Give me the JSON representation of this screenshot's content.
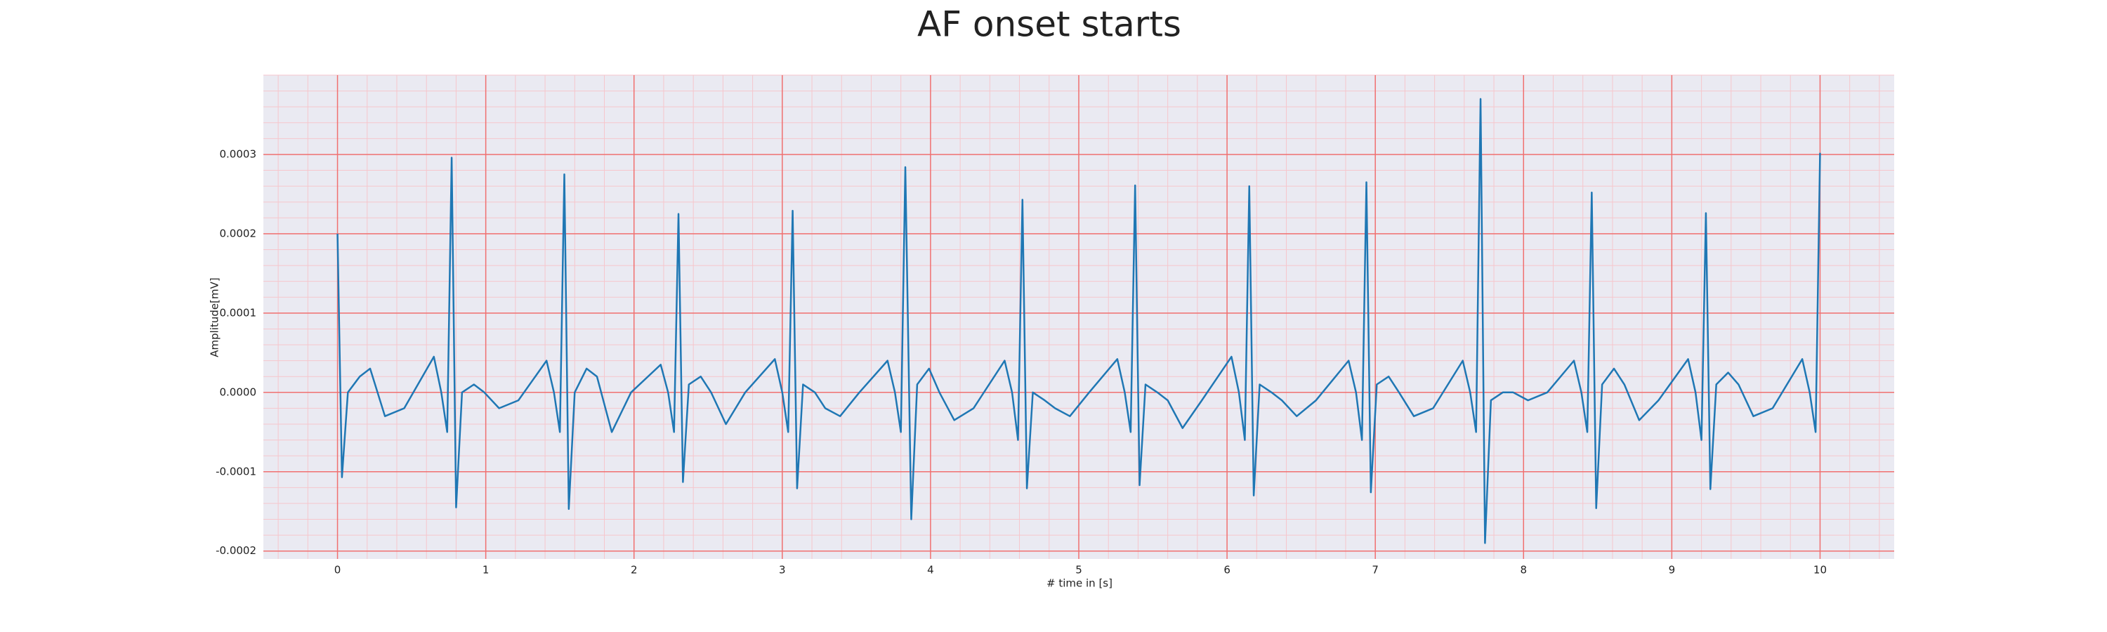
{
  "chart_data": {
    "type": "line",
    "title": "AF onset starts",
    "xlabel": "# time in [s]",
    "ylabel": "Amplitude[mV]",
    "color": "#1f77b4",
    "background": "#eaeaf2",
    "grid": true,
    "grid_color": "#f07070",
    "minor_grid": {
      "x": 0.2,
      "y": 2e-05
    },
    "minor_grid_color": "#f6c6cc",
    "xlim": [
      -0.5,
      10.5
    ],
    "xticks": [
      0,
      1,
      2,
      3,
      4,
      5,
      6,
      7,
      8,
      9,
      10
    ],
    "ylim": [
      -0.00021,
      0.0004
    ],
    "yticks": [
      -0.0002,
      -0.0001,
      {
        "value": 0,
        "label": "0.0000"
      },
      0.0001,
      0.0002,
      0.0003
    ],
    "x": [
      0,
      0.03,
      0.07,
      0.15,
      0.22,
      0.32,
      0.45,
      0.65,
      0.7,
      0.74,
      0.77,
      0.8,
      0.84,
      0.92,
      0.99,
      1.09,
      1.22,
      1.41,
      1.46,
      1.5,
      1.53,
      1.56,
      1.6,
      1.68,
      1.75,
      1.85,
      1.98,
      2.18,
      2.23,
      2.27,
      2.3,
      2.33,
      2.37,
      2.45,
      2.52,
      2.62,
      2.75,
      2.95,
      3.0,
      3.04,
      3.07,
      3.1,
      3.14,
      3.22,
      3.29,
      3.39,
      3.52,
      3.71,
      3.76,
      3.8,
      3.83,
      3.87,
      3.91,
      3.99,
      4.06,
      4.16,
      4.29,
      4.5,
      4.55,
      4.59,
      4.62,
      4.65,
      4.69,
      4.77,
      4.84,
      4.94,
      5.07,
      5.26,
      5.31,
      5.35,
      5.38,
      5.41,
      5.45,
      5.53,
      5.6,
      5.7,
      5.83,
      6.03,
      6.08,
      6.12,
      6.15,
      6.18,
      6.22,
      6.3,
      6.37,
      6.47,
      6.6,
      6.82,
      6.87,
      6.91,
      6.94,
      6.97,
      7.01,
      7.09,
      7.16,
      7.26,
      7.39,
      7.59,
      7.64,
      7.68,
      7.71,
      7.74,
      7.78,
      7.86,
      7.93,
      8.03,
      8.16,
      8.34,
      8.39,
      8.43,
      8.46,
      8.49,
      8.53,
      8.61,
      8.68,
      8.78,
      8.91,
      9.11,
      9.16,
      9.2,
      9.23,
      9.26,
      9.3,
      9.38,
      9.45,
      9.55,
      9.68,
      9.88,
      9.93,
      9.97,
      10.0
    ],
    "values": [
      0.0002,
      -0.000107,
      0,
      2e-05,
      3e-05,
      -3e-05,
      -2e-05,
      4.5e-05,
      0,
      -5e-05,
      0.000296,
      -0.000145,
      0,
      1e-05,
      0,
      -2e-05,
      -1e-05,
      4e-05,
      0,
      -5e-05,
      0.000275,
      -0.000147,
      0,
      3e-05,
      2e-05,
      -5e-05,
      0,
      3.5e-05,
      0,
      -5e-05,
      0.000225,
      -0.000113,
      1e-05,
      2e-05,
      0,
      -4e-05,
      0,
      4.2e-05,
      0,
      -5e-05,
      0.000229,
      -0.000121,
      1e-05,
      0,
      -2e-05,
      -3e-05,
      0,
      4e-05,
      0,
      -5e-05,
      0.000284,
      -0.00016,
      1e-05,
      3e-05,
      0,
      -3.5e-05,
      -2e-05,
      4e-05,
      0,
      -6e-05,
      0.000243,
      -0.000121,
      0,
      -1e-05,
      -2e-05,
      -3e-05,
      0,
      4.2e-05,
      0,
      -5e-05,
      0.000261,
      -0.000117,
      1e-05,
      0,
      -1e-05,
      -4.5e-05,
      -1e-05,
      4.5e-05,
      0,
      -6e-05,
      0.00026,
      -0.00013,
      1e-05,
      0,
      -1e-05,
      -3e-05,
      -1e-05,
      4e-05,
      0,
      -6e-05,
      0.000265,
      -0.000126,
      1e-05,
      2e-05,
      0,
      -3e-05,
      -2e-05,
      4e-05,
      0,
      -5e-05,
      0.00037,
      -0.00019,
      -1e-05,
      0,
      0,
      -1e-05,
      0,
      4e-05,
      0,
      -5e-05,
      0.000252,
      -0.000146,
      1e-05,
      3e-05,
      1e-05,
      -3.5e-05,
      -1e-05,
      4.2e-05,
      0,
      -6e-05,
      0.000226,
      -0.000122,
      1e-05,
      2.5e-05,
      1e-05,
      -3e-05,
      -2e-05,
      4.2e-05,
      0,
      -5e-05,
      0.000302
    ]
  }
}
